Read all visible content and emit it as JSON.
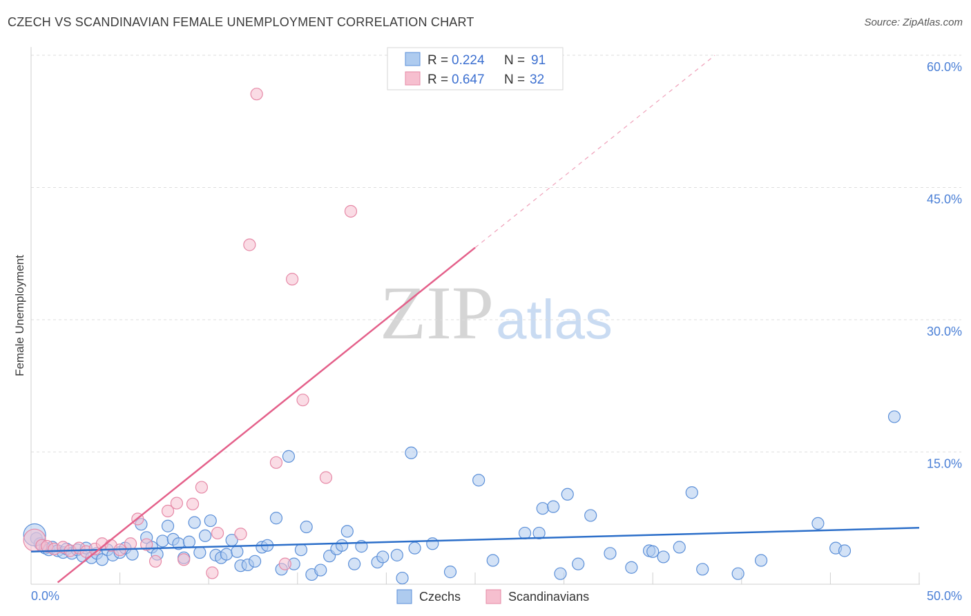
{
  "title": "CZECH VS SCANDINAVIAN FEMALE UNEMPLOYMENT CORRELATION CHART",
  "source": "Source: ZipAtlas.com",
  "watermark": {
    "zip": "ZIP",
    "atlas": "atlas"
  },
  "legend": {
    "rows": [
      {
        "r_label": "R = ",
        "r_value": "0.224",
        "n_label": "N = ",
        "n_value": "91"
      },
      {
        "r_label": "R = ",
        "r_value": "0.647",
        "n_label": "N = ",
        "n_value": "32"
      }
    ]
  },
  "colors": {
    "czech_fill": "#aecbef",
    "czech_stroke": "#5b8fd8",
    "czech_line": "#2b6ec9",
    "scand_fill": "#f6bfcf",
    "scand_stroke": "#e688a6",
    "scand_line": "#e4608a",
    "grid": "#dddddd",
    "axis_text": "#4a7fd6"
  },
  "chart_data": {
    "type": "scatter",
    "title": "CZECH VS SCANDINAVIAN FEMALE UNEMPLOYMENT CORRELATION CHART",
    "xlabel": "",
    "ylabel": "Female Unemployment",
    "xlim": [
      0,
      50
    ],
    "ylim": [
      0,
      60
    ],
    "x_tick_labels": [
      "0.0%",
      "50.0%"
    ],
    "y_ticks": [
      15,
      30,
      45,
      60
    ],
    "y_tick_labels": [
      "15.0%",
      "30.0%",
      "45.0%",
      "60.0%"
    ],
    "grid": true,
    "legend_position": "bottom",
    "series": [
      {
        "name": "Czechs",
        "trend": {
          "x0": 0,
          "y0": 3.7,
          "x1": 50,
          "y1": 6.4,
          "dashed_from": null
        },
        "points": [
          [
            0.3,
            5.2
          ],
          [
            0.5,
            4.6
          ],
          [
            0.8,
            4.1
          ],
          [
            1.0,
            3.9
          ],
          [
            1.2,
            4.2
          ],
          [
            1.5,
            3.8
          ],
          [
            1.8,
            3.6
          ],
          [
            2.0,
            4.0
          ],
          [
            2.3,
            3.5
          ],
          [
            2.6,
            3.9
          ],
          [
            2.9,
            3.2
          ],
          [
            3.1,
            4.1
          ],
          [
            3.4,
            3.0
          ],
          [
            3.7,
            3.5
          ],
          [
            4.0,
            2.8
          ],
          [
            4.3,
            3.9
          ],
          [
            4.6,
            3.3
          ],
          [
            5.0,
            3.6
          ],
          [
            5.3,
            4.1
          ],
          [
            5.7,
            3.4
          ],
          [
            6.2,
            6.8
          ],
          [
            6.5,
            5.3
          ],
          [
            6.8,
            4.2
          ],
          [
            7.1,
            3.4
          ],
          [
            7.4,
            4.9
          ],
          [
            7.7,
            6.6
          ],
          [
            8.0,
            5.1
          ],
          [
            8.3,
            4.6
          ],
          [
            8.6,
            3.0
          ],
          [
            8.9,
            4.8
          ],
          [
            9.2,
            7.0
          ],
          [
            9.5,
            3.6
          ],
          [
            9.8,
            5.5
          ],
          [
            10.1,
            7.2
          ],
          [
            10.4,
            3.3
          ],
          [
            10.7,
            3.0
          ],
          [
            11.0,
            3.4
          ],
          [
            11.3,
            5.0
          ],
          [
            11.6,
            3.7
          ],
          [
            11.8,
            2.1
          ],
          [
            12.2,
            2.2
          ],
          [
            12.6,
            2.6
          ],
          [
            13.0,
            4.2
          ],
          [
            13.3,
            4.4
          ],
          [
            13.8,
            7.5
          ],
          [
            14.1,
            1.7
          ],
          [
            14.5,
            14.5
          ],
          [
            14.8,
            2.3
          ],
          [
            15.2,
            3.9
          ],
          [
            15.5,
            6.5
          ],
          [
            15.8,
            1.1
          ],
          [
            16.3,
            1.6
          ],
          [
            16.8,
            3.2
          ],
          [
            17.2,
            4.0
          ],
          [
            17.5,
            4.4
          ],
          [
            17.8,
            6.0
          ],
          [
            18.2,
            2.3
          ],
          [
            18.6,
            4.3
          ],
          [
            19.5,
            2.5
          ],
          [
            19.8,
            3.1
          ],
          [
            20.6,
            3.3
          ],
          [
            20.9,
            0.7
          ],
          [
            21.4,
            14.9
          ],
          [
            21.6,
            4.1
          ],
          [
            22.6,
            4.6
          ],
          [
            23.6,
            1.4
          ],
          [
            25.2,
            11.8
          ],
          [
            26.0,
            2.7
          ],
          [
            27.8,
            5.8
          ],
          [
            28.6,
            5.8
          ],
          [
            28.8,
            8.6
          ],
          [
            29.4,
            8.8
          ],
          [
            29.8,
            1.2
          ],
          [
            30.2,
            10.2
          ],
          [
            30.8,
            2.3
          ],
          [
            31.5,
            7.8
          ],
          [
            32.6,
            3.5
          ],
          [
            33.8,
            1.9
          ],
          [
            34.8,
            3.8
          ],
          [
            35.0,
            3.7
          ],
          [
            35.6,
            3.1
          ],
          [
            36.5,
            4.2
          ],
          [
            37.2,
            10.4
          ],
          [
            37.8,
            1.7
          ],
          [
            39.8,
            1.2
          ],
          [
            41.1,
            2.7
          ],
          [
            44.3,
            6.9
          ],
          [
            45.3,
            4.1
          ],
          [
            45.8,
            3.8
          ],
          [
            48.6,
            19.0
          ],
          [
            0.2,
            5.6
          ]
        ]
      },
      {
        "name": "Scandinavians",
        "trend": {
          "x0": 1.5,
          "y0": 0.2,
          "x1": 38.5,
          "y1": 60.0,
          "dashed_from": 25.0
        },
        "points": [
          [
            0.2,
            5.0
          ],
          [
            0.6,
            4.4
          ],
          [
            0.9,
            4.3
          ],
          [
            1.3,
            4.0
          ],
          [
            1.8,
            4.2
          ],
          [
            2.2,
            3.8
          ],
          [
            2.7,
            4.1
          ],
          [
            3.1,
            3.7
          ],
          [
            3.6,
            4.0
          ],
          [
            4.0,
            4.6
          ],
          [
            4.5,
            4.4
          ],
          [
            5.0,
            3.9
          ],
          [
            5.6,
            4.6
          ],
          [
            6.0,
            7.4
          ],
          [
            6.5,
            4.5
          ],
          [
            7.0,
            2.6
          ],
          [
            7.7,
            8.3
          ],
          [
            8.2,
            9.2
          ],
          [
            8.6,
            2.8
          ],
          [
            9.1,
            9.1
          ],
          [
            9.6,
            11.0
          ],
          [
            10.2,
            1.3
          ],
          [
            10.5,
            5.8
          ],
          [
            11.8,
            5.7
          ],
          [
            12.3,
            38.5
          ],
          [
            12.7,
            55.6
          ],
          [
            13.8,
            13.8
          ],
          [
            14.3,
            2.3
          ],
          [
            14.7,
            34.6
          ],
          [
            15.3,
            20.9
          ],
          [
            16.6,
            12.1
          ],
          [
            18.0,
            42.3
          ]
        ]
      }
    ]
  },
  "bottom_legend": [
    "Czechs",
    "Scandinavians"
  ]
}
